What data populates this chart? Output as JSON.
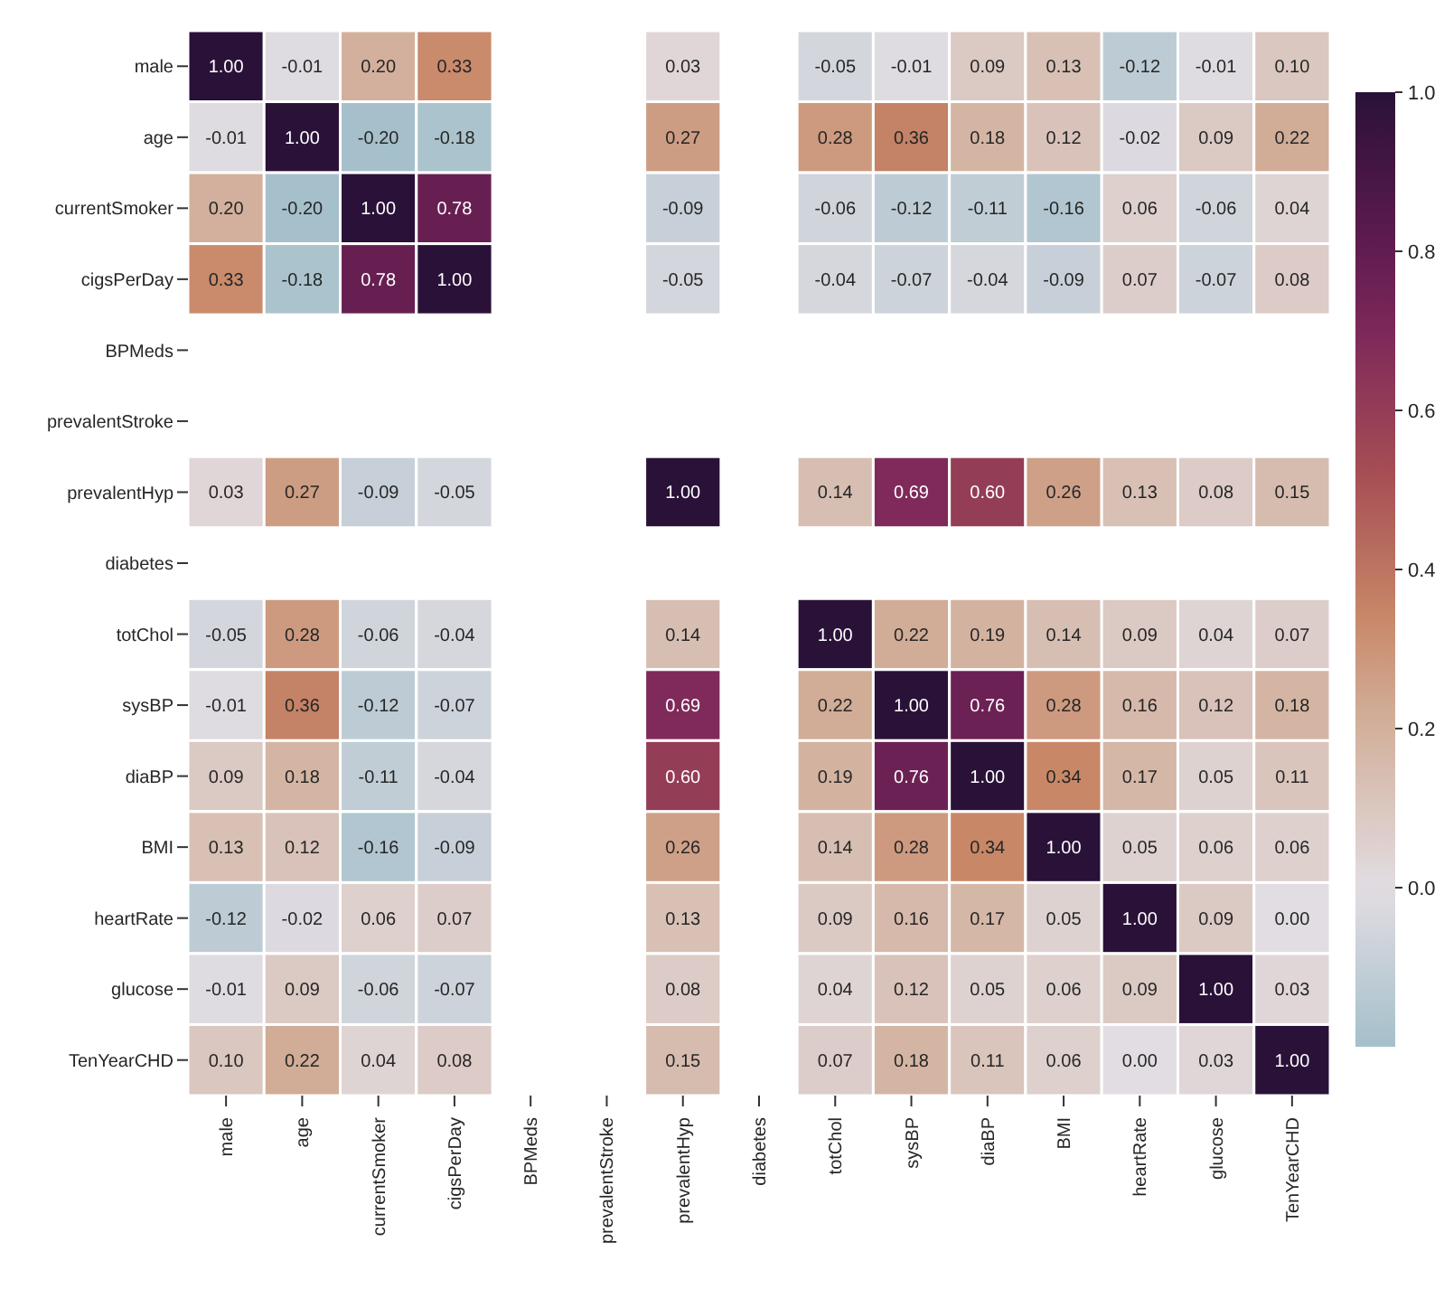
{
  "chart_data": {
    "type": "heatmap",
    "categories": [
      "male",
      "age",
      "currentSmoker",
      "cigsPerDay",
      "BPMeds",
      "prevalentStroke",
      "prevalentHyp",
      "diabetes",
      "totChol",
      "sysBP",
      "diaBP",
      "BMI",
      "heartRate",
      "glucose",
      "TenYearCHD"
    ],
    "y_categories": [
      "male",
      "age",
      "currentSmoker",
      "cigsPerDay",
      "BPMeds",
      "prevalentStroke",
      "prevalentHyp",
      "diabetes",
      "totChol",
      "sysBP",
      "diaBP",
      "BMI",
      "heartRate",
      "glucose",
      "TenYearCHD"
    ],
    "cells": [
      [
        1.0,
        -0.01,
        0.2,
        0.33,
        null,
        null,
        0.03,
        null,
        -0.05,
        -0.01,
        0.09,
        0.13,
        -0.12,
        -0.01,
        0.1
      ],
      [
        -0.01,
        1.0,
        -0.2,
        -0.18,
        null,
        null,
        0.27,
        null,
        0.28,
        0.36,
        0.18,
        0.12,
        -0.02,
        0.09,
        0.22
      ],
      [
        0.2,
        -0.2,
        1.0,
        0.78,
        null,
        null,
        -0.09,
        null,
        -0.06,
        -0.12,
        -0.11,
        -0.16,
        0.06,
        -0.06,
        0.04
      ],
      [
        0.33,
        -0.18,
        0.78,
        1.0,
        null,
        null,
        -0.05,
        null,
        -0.04,
        -0.07,
        -0.04,
        -0.09,
        0.07,
        -0.07,
        0.08
      ],
      [
        null,
        null,
        null,
        null,
        null,
        null,
        null,
        null,
        null,
        null,
        null,
        null,
        null,
        null,
        null
      ],
      [
        null,
        null,
        null,
        null,
        null,
        null,
        null,
        null,
        null,
        null,
        null,
        null,
        null,
        null,
        null
      ],
      [
        0.03,
        0.27,
        -0.09,
        -0.05,
        null,
        null,
        1.0,
        null,
        0.14,
        0.69,
        0.6,
        0.26,
        0.13,
        0.08,
        0.15
      ],
      [
        null,
        null,
        null,
        null,
        null,
        null,
        null,
        null,
        null,
        null,
        null,
        null,
        null,
        null,
        null
      ],
      [
        -0.05,
        0.28,
        -0.06,
        -0.04,
        null,
        null,
        0.14,
        null,
        1.0,
        0.22,
        0.19,
        0.14,
        0.09,
        0.04,
        0.07
      ],
      [
        -0.01,
        0.36,
        -0.12,
        -0.07,
        null,
        null,
        0.69,
        null,
        0.22,
        1.0,
        0.76,
        0.28,
        0.16,
        0.12,
        0.18
      ],
      [
        0.09,
        0.18,
        -0.11,
        -0.04,
        null,
        null,
        0.6,
        null,
        0.19,
        0.76,
        1.0,
        0.34,
        0.17,
        0.05,
        0.11
      ],
      [
        0.13,
        0.12,
        -0.16,
        -0.09,
        null,
        null,
        0.26,
        null,
        0.14,
        0.28,
        0.34,
        1.0,
        0.05,
        0.06,
        0.06
      ],
      [
        -0.12,
        -0.02,
        0.06,
        0.07,
        null,
        null,
        0.13,
        null,
        0.09,
        0.16,
        0.17,
        0.05,
        1.0,
        0.09,
        0.0
      ],
      [
        -0.01,
        0.09,
        -0.06,
        -0.07,
        null,
        null,
        0.08,
        null,
        0.04,
        0.12,
        0.05,
        0.06,
        0.09,
        1.0,
        0.03
      ],
      [
        0.1,
        0.22,
        0.04,
        0.08,
        null,
        null,
        0.15,
        null,
        0.07,
        0.18,
        0.11,
        0.06,
        0.0,
        0.03,
        1.0
      ]
    ],
    "cell_labels": [
      [
        "1.00",
        "-0.01",
        "0.20",
        "0.33",
        null,
        null,
        "0.03",
        null,
        "-0.05",
        "-0.01",
        "0.09",
        "0.13",
        "-0.12",
        "-0.01",
        "0.10"
      ],
      [
        "-0.01",
        "1.00",
        "-0.20",
        "-0.18",
        null,
        null,
        "0.27",
        null,
        "0.28",
        "0.36",
        "0.18",
        "0.12",
        "-0.02",
        "0.09",
        "0.22"
      ],
      [
        "0.20",
        "-0.20",
        "1.00",
        "0.78",
        null,
        null,
        "-0.09",
        null,
        "-0.06",
        "-0.12",
        "-0.11",
        "-0.16",
        "0.06",
        "-0.06",
        "0.04"
      ],
      [
        "0.33",
        "-0.18",
        "0.78",
        "1.00",
        null,
        null,
        "-0.05",
        null,
        "-0.04",
        "-0.07",
        "-0.04",
        "-0.09",
        "0.07",
        "-0.07",
        "0.08"
      ],
      [
        null,
        null,
        null,
        null,
        null,
        null,
        null,
        null,
        null,
        null,
        null,
        null,
        null,
        null,
        null
      ],
      [
        null,
        null,
        null,
        null,
        null,
        null,
        null,
        null,
        null,
        null,
        null,
        null,
        null,
        null,
        null
      ],
      [
        "0.03",
        "0.27",
        "-0.09",
        "-0.05",
        null,
        null,
        "1.00",
        null,
        "0.14",
        "0.69",
        "0.60",
        "0.26",
        "0.13",
        "0.08",
        "0.15"
      ],
      [
        null,
        null,
        null,
        null,
        null,
        null,
        null,
        null,
        null,
        null,
        null,
        null,
        null,
        null,
        null
      ],
      [
        "-0.05",
        "0.28",
        "-0.06",
        "-0.04",
        null,
        null,
        "0.14",
        null,
        "1.00",
        "0.22",
        "0.19",
        "0.14",
        "0.09",
        "0.04",
        "0.07"
      ],
      [
        "-0.01",
        "0.36",
        "-0.12",
        "-0.07",
        null,
        null,
        "0.69",
        null,
        "0.22",
        "1.00",
        "0.76",
        "0.28",
        "0.16",
        "0.12",
        "0.18"
      ],
      [
        "0.09",
        "0.18",
        "-0.11",
        "-0.04",
        null,
        null,
        "0.60",
        null,
        "0.19",
        "0.76",
        "1.00",
        "0.34",
        "0.17",
        "0.05",
        "0.11"
      ],
      [
        "0.13",
        "0.12",
        "-0.16",
        "-0.09",
        null,
        null,
        "0.26",
        null,
        "0.14",
        "0.28",
        "0.34",
        "1.00",
        "0.05",
        "0.06",
        "0.06"
      ],
      [
        "-0.12",
        "-0.02",
        "0.06",
        "0.07",
        null,
        null,
        "0.13",
        null,
        "0.09",
        "0.16",
        "0.17",
        "0.05",
        "1.00",
        "0.09",
        "0.00"
      ],
      [
        "-0.01",
        "0.09",
        "-0.06",
        "-0.07",
        null,
        null,
        "0.08",
        null,
        "0.04",
        "0.12",
        "0.05",
        "0.06",
        "0.09",
        "1.00",
        "0.03"
      ],
      [
        "0.10",
        "0.22",
        "0.04",
        "0.08",
        null,
        null,
        "0.15",
        null,
        "0.07",
        "0.18",
        "0.11",
        "0.06",
        "0.00",
        "0.03",
        "1.00"
      ]
    ],
    "clim": [
      -0.2,
      1.0
    ],
    "cticks": [
      {
        "value": 0.0,
        "label": "0.0"
      },
      0.2,
      0.4,
      0.6,
      0.8,
      {
        "value": 1.0,
        "label": "1.0"
      }
    ]
  }
}
